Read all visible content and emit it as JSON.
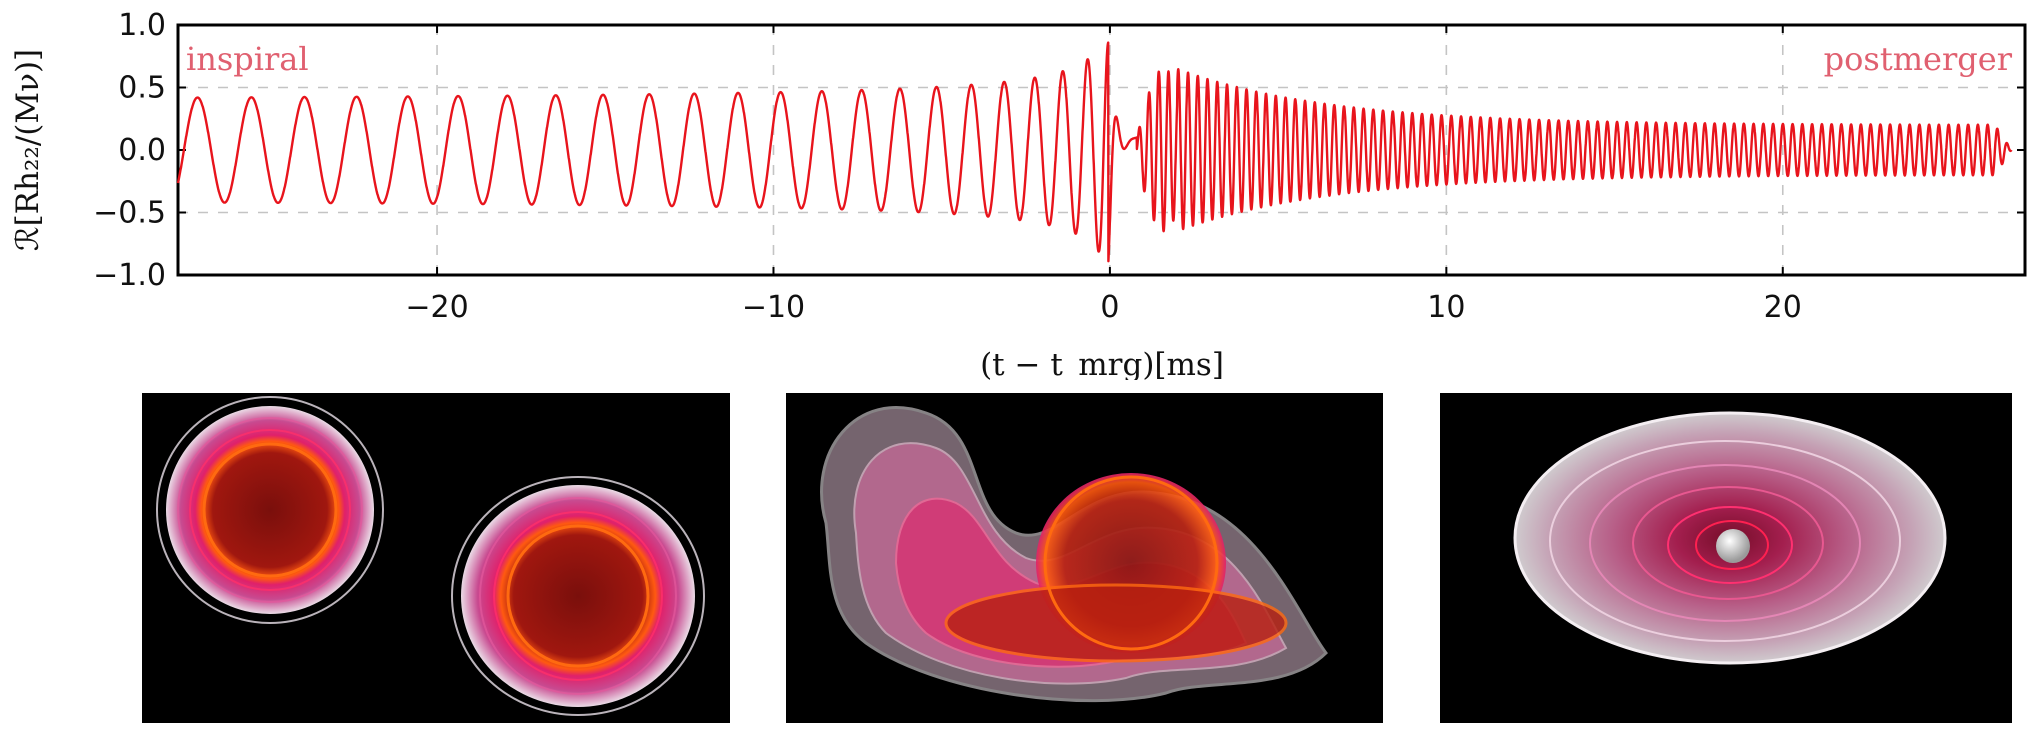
{
  "chart_data": {
    "type": "line",
    "title": "",
    "xlabel": "(t − t_mrg)[ms]",
    "ylabel": "ℛ[Rh₂₂/(Mν)]",
    "xlim": [
      -27.7,
      27.2
    ],
    "ylim": [
      -1.0,
      1.0
    ],
    "xticks": [
      -20,
      -10,
      0,
      10,
      20
    ],
    "xtick_labels": [
      "−20",
      "−10",
      "0",
      "10",
      "20"
    ],
    "yticks": [
      1.0,
      0.5,
      0.0,
      -0.5,
      -1.0
    ],
    "ytick_labels": [
      "1.0",
      "0.5",
      "0.0",
      "−0.5",
      "−1.0"
    ],
    "grid": "dashed horizontal at ±0.5, dashed vertical at x ticks",
    "series": [
      {
        "color": "#e8141c",
        "description_points": [
          {
            "x": -26.7,
            "y": 0.37
          },
          {
            "x": -25.2,
            "y": -0.41
          },
          {
            "x": -24.4,
            "y": 0.4
          },
          {
            "x": -16.8,
            "y": 0.46
          },
          {
            "x": -10.0,
            "y": -0.52
          },
          {
            "x": -5.1,
            "y": 0.55
          },
          {
            "x": -2.4,
            "y": 0.62
          },
          {
            "x": -1.2,
            "y": 0.67
          },
          {
            "x": -0.4,
            "y": 0.84
          },
          {
            "x": 0.0,
            "y": -0.92
          },
          {
            "x": 0.5,
            "y": 0.72
          },
          {
            "x": 0.8,
            "y": -0.05
          },
          {
            "x": 1.6,
            "y": 0.68
          },
          {
            "x": 1.8,
            "y": -0.65
          },
          {
            "x": 3.0,
            "y": 0.45
          },
          {
            "x": 10.0,
            "y": 0.32
          },
          {
            "x": 20.0,
            "y": 0.21
          },
          {
            "x": 26.0,
            "y": 0.2
          },
          {
            "x": 26.8,
            "y": 0.0
          }
        ]
      }
    ],
    "annotations": [
      {
        "text": "inspiral",
        "color": "#e06070"
      },
      {
        "text": "postmerger",
        "color": "#e06070"
      }
    ]
  },
  "panels": [
    {
      "name": "inspiral-snapshot"
    },
    {
      "name": "merger-snapshot"
    },
    {
      "name": "postmerger-snapshot"
    }
  ]
}
